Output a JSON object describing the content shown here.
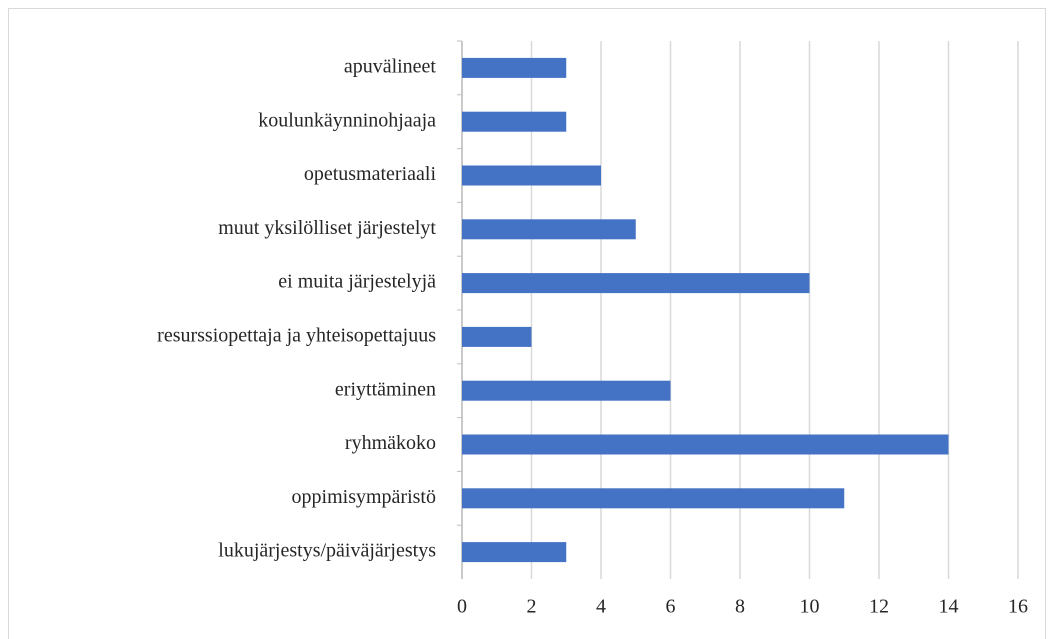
{
  "chart_data": {
    "type": "barh",
    "categories": [
      "apuvälineet",
      "koulunkäynninohjaaja",
      "opetusmateriaali",
      "muut yksilölliset järjestelyt",
      "ei muita järjestelyjä",
      "resurssiopettaja ja yhteisopettajuus",
      "eriyttäminen",
      "ryhmäkoko",
      "oppimisympäristö",
      "lukujärjestys/päiväjärjestys"
    ],
    "values": [
      3,
      3,
      4,
      5,
      10,
      2,
      6,
      14,
      11,
      3
    ],
    "color": "#4472c4",
    "xlim": [
      0,
      16
    ],
    "xticks": [
      0,
      2,
      4,
      6,
      8,
      10,
      12,
      14,
      16
    ],
    "grid": true
  }
}
